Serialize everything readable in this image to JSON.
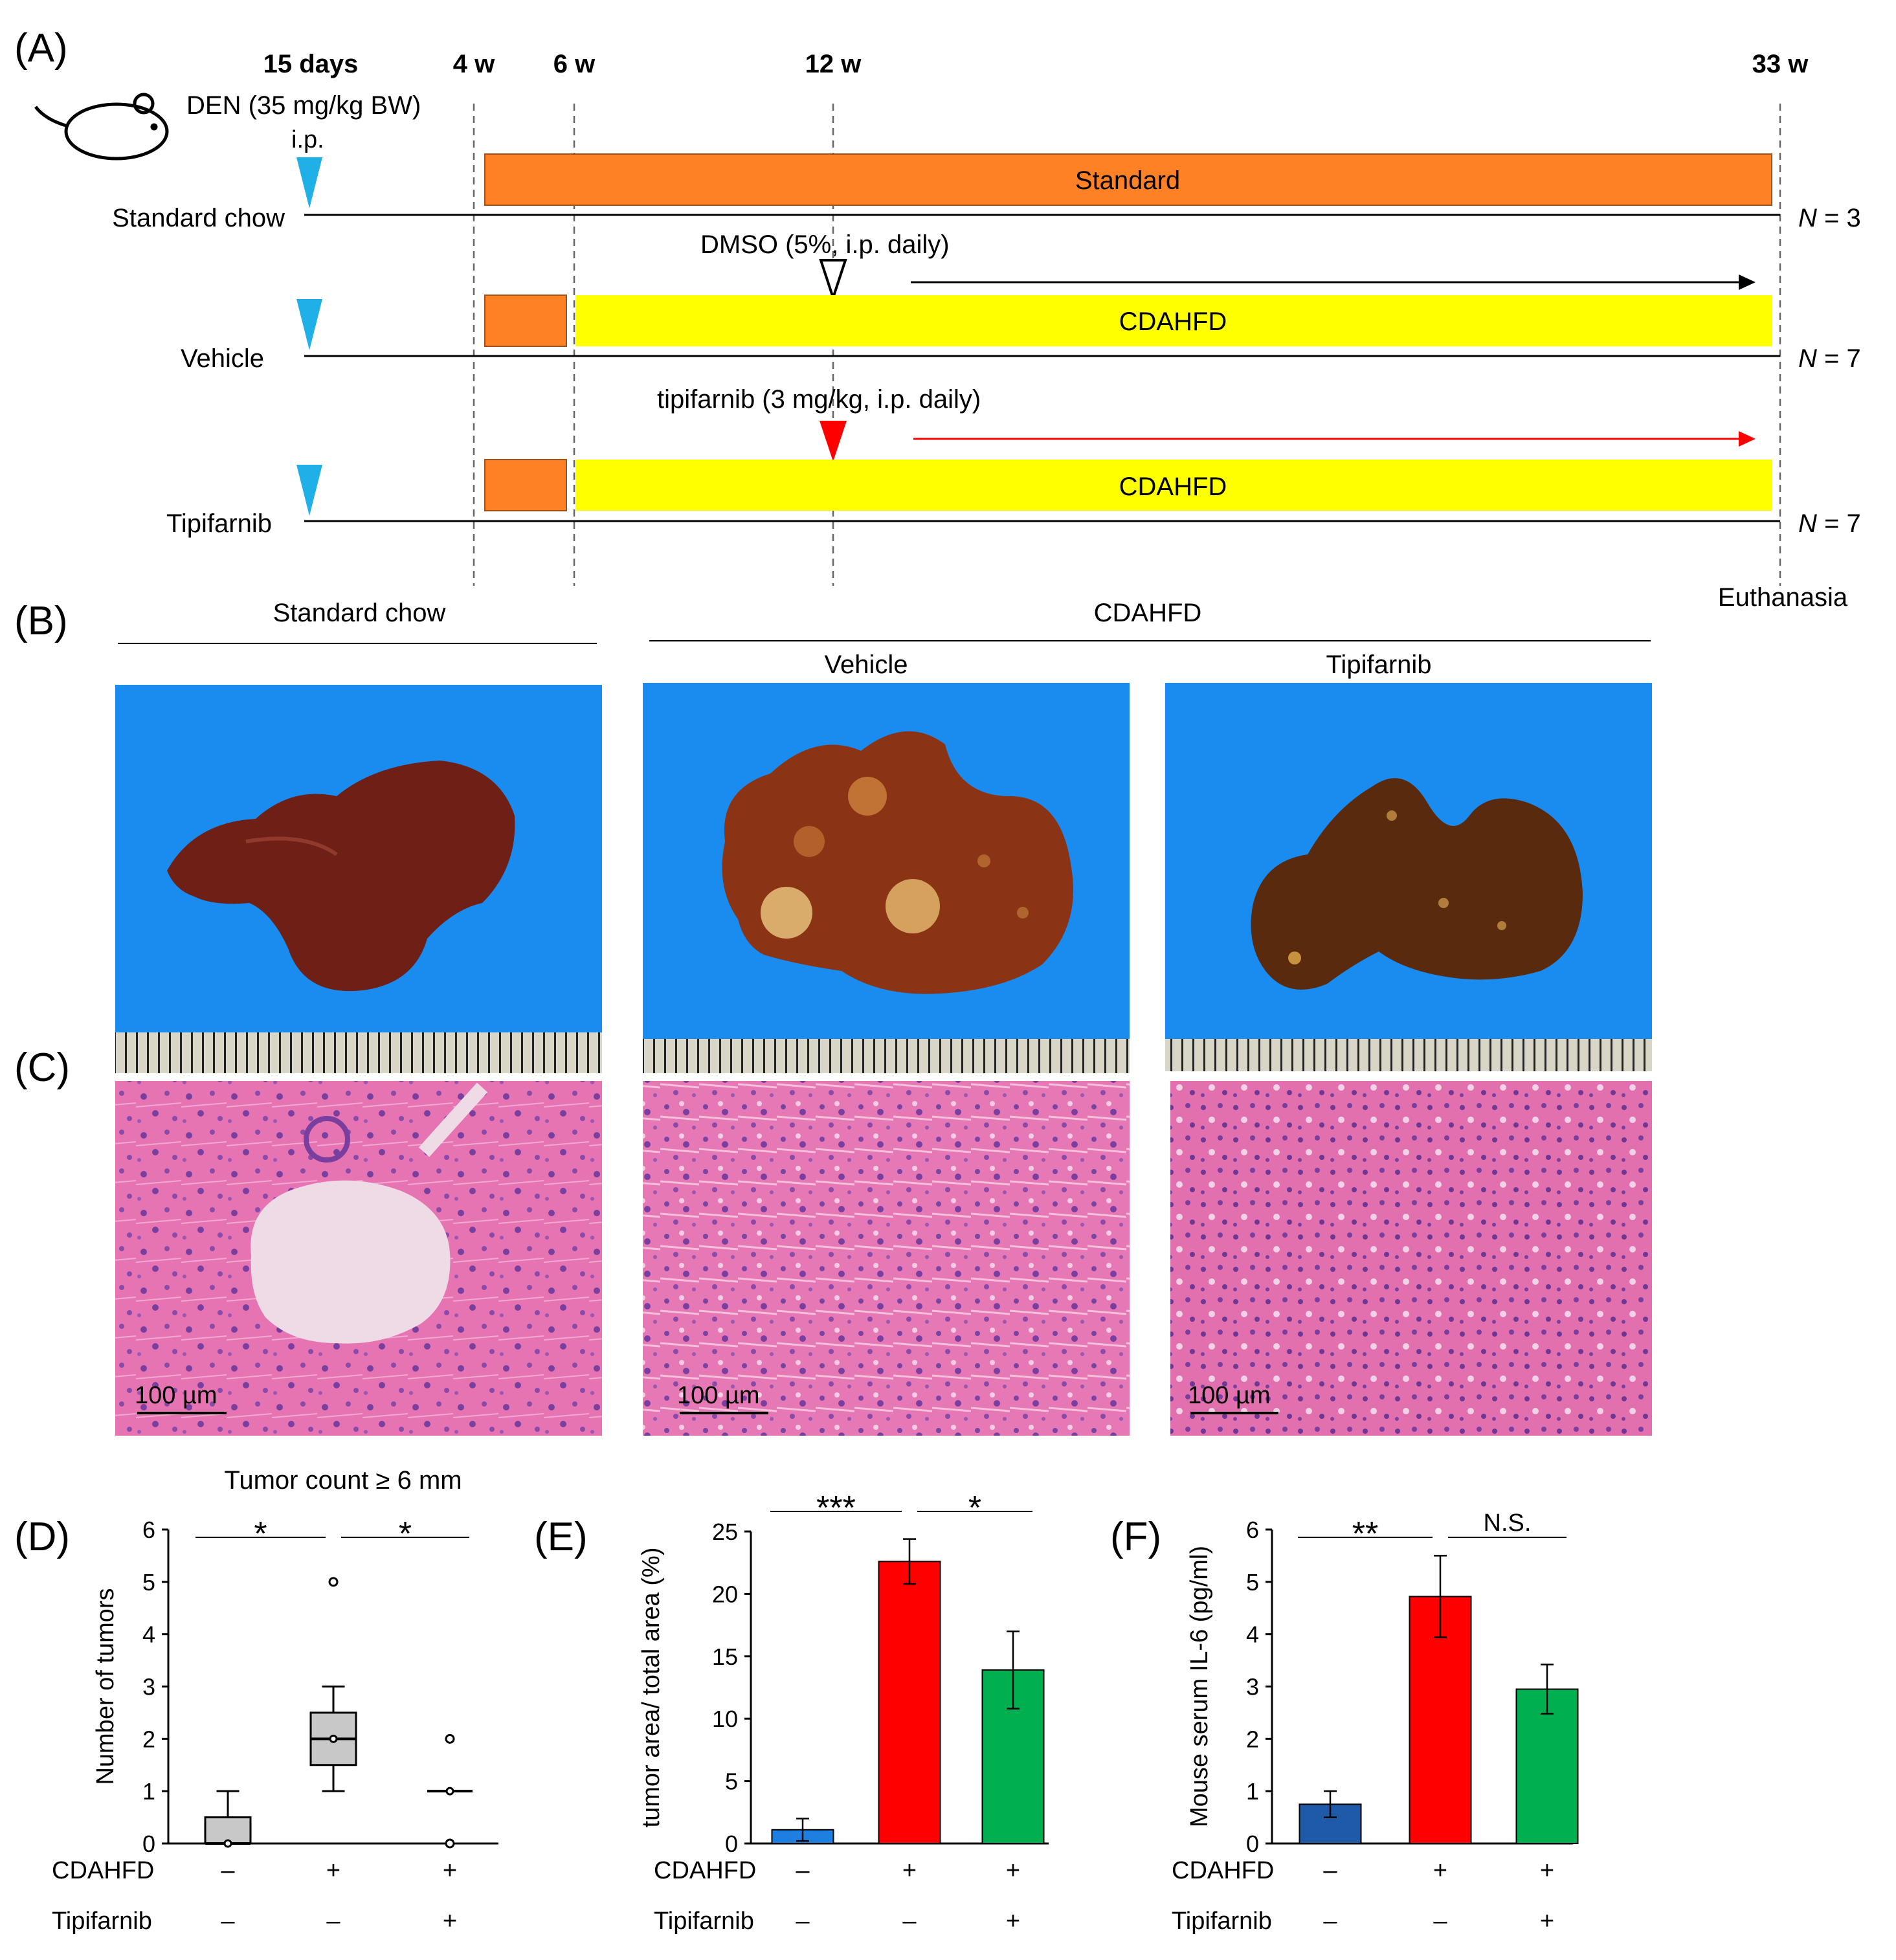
{
  "panels": {
    "a_label": "(A)",
    "b_label": "(B)",
    "c_label": "(C)",
    "d_label": "(D)",
    "e_label": "(E)",
    "f_label": "(F)"
  },
  "timeline": {
    "timepoints": [
      "15 days",
      "4 w",
      "6 w",
      "12 w",
      "33 w"
    ],
    "den_label": "DEN (35 mg/kg BW)",
    "ip_label": "i.p.",
    "groups": [
      {
        "name": "Standard chow",
        "n_prefix": "N",
        "n_value": " = 3"
      },
      {
        "name": "Vehicle",
        "n_prefix": "N",
        "n_value": " = 7"
      },
      {
        "name": "Tipifarnib",
        "n_prefix": "N",
        "n_value": " = 7"
      }
    ],
    "standard_bar": "Standard",
    "cdahfd_bar": "CDAHFD",
    "dmso_label": "DMSO (5%, i.p. daily)",
    "tipifarnib_label": "tipifarnib (3 mg/kg,  i.p. daily)",
    "euthanasia": "Euthanasia",
    "colors": {
      "orange": "#ff8126",
      "yellow": "#ffff00",
      "cyan": "#1fb0e8",
      "red": "#ff0000"
    }
  },
  "photos": {
    "header_standard": "Standard chow",
    "header_cdahfd": "CDAHFD",
    "sub_vehicle": "Vehicle",
    "sub_tipifarnib": "Tipifarnib",
    "scale_bar": "100 µm",
    "colors": {
      "blue_bg": "#1a8cf0",
      "liver": "#6e2016",
      "tissue": "#e36fb0"
    }
  },
  "conditions": {
    "row1_label": "CDAHFD",
    "row2_label": "Tipifarnib",
    "row1_signs": [
      "–",
      "+",
      "+"
    ],
    "row2_signs": [
      "–",
      "–",
      "+"
    ]
  },
  "chart_data": [
    {
      "type": "box",
      "title": "Tumor count ≥ 6 mm",
      "ylabel": "Number of tumors",
      "ylim": [
        0,
        6
      ],
      "yticks": [
        "0",
        "1",
        "2",
        "3",
        "4",
        "5",
        "6"
      ],
      "groups": [
        {
          "min": 0,
          "q1": 0,
          "median": 0,
          "q3": 0.5,
          "max": 1,
          "mean": 0,
          "outliers": [],
          "fill": "#c8c8c8"
        },
        {
          "min": 1,
          "q1": 1.5,
          "median": 2,
          "q3": 2.5,
          "max": 3,
          "mean": 2,
          "outliers": [
            5
          ],
          "fill": "#c8c8c8"
        },
        {
          "min": 1,
          "q1": 1,
          "median": 1,
          "q3": 1,
          "max": 1,
          "mean": 1,
          "outliers": [
            0,
            2
          ],
          "fill": "#c8c8c8"
        }
      ],
      "significance": [
        {
          "pair": [
            0,
            1
          ],
          "label": "*"
        },
        {
          "pair": [
            1,
            2
          ],
          "label": "*"
        }
      ]
    },
    {
      "type": "bar",
      "ylabel": "tumor area/ total area (%)",
      "ylim": [
        0,
        25
      ],
      "yticks": [
        "0",
        "5",
        "10",
        "15",
        "20",
        "25"
      ],
      "values": [
        1.1,
        22.6,
        13.9
      ],
      "errors": [
        0.9,
        1.8,
        3.1
      ],
      "colors": [
        "#1f7fe0",
        "#ff0000",
        "#00b050"
      ],
      "significance": [
        {
          "pair": [
            0,
            1
          ],
          "label": "***"
        },
        {
          "pair": [
            1,
            2
          ],
          "label": "*"
        }
      ]
    },
    {
      "type": "bar",
      "ylabel": "Mouse serum IL-6 (pg/ml)",
      "ylim": [
        0,
        6
      ],
      "yticks": [
        "0",
        "1",
        "2",
        "3",
        "4",
        "5",
        "6"
      ],
      "values": [
        0.75,
        4.72,
        2.95
      ],
      "errors": [
        0.25,
        0.78,
        0.47
      ],
      "colors": [
        "#1e5aa8",
        "#ff0000",
        "#00b050"
      ],
      "significance": [
        {
          "pair": [
            0,
            1
          ],
          "label": "**"
        },
        {
          "pair": [
            1,
            2
          ],
          "label": "N.S."
        }
      ]
    }
  ]
}
